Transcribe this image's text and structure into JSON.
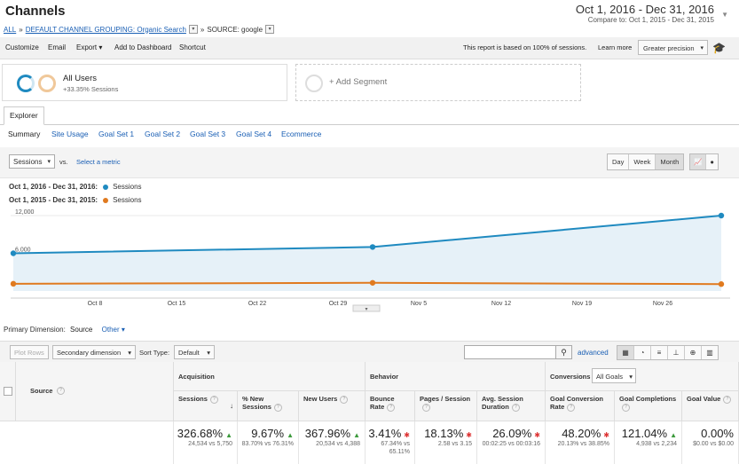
{
  "page": {
    "title": "Channels",
    "breadcrumb": {
      "all": "ALL",
      "sep": "»",
      "grouping": "DEFAULT CHANNEL GROUPING: Organic Search",
      "source": "SOURCE: google"
    },
    "date_range": {
      "main": "Oct 1, 2016 - Dec 31, 2016",
      "compare": "Compare to: Oct 1, 2015 - Dec 31, 2015"
    }
  },
  "toolbar": {
    "customize": "Customize",
    "email": "Email",
    "export": "Export ▾",
    "dashboard": "Add to Dashboard",
    "shortcut": "Shortcut",
    "sampling_note": "This report is based on 100% of sessions.",
    "learn_more": "Learn more",
    "precision": "Greater precision"
  },
  "segments": {
    "all_users": "All Users",
    "all_users_delta": "+33.35% Sessions",
    "add_segment": "+ Add Segment"
  },
  "tabs": {
    "explorer": "Explorer",
    "subtabs": [
      "Summary",
      "Site Usage",
      "Goal Set 1",
      "Goal Set 2",
      "Goal Set 3",
      "Goal Set 4",
      "Ecommerce"
    ]
  },
  "chart_controls": {
    "metric": "Sessions",
    "vs": "vs.",
    "select_metric": "Select a metric",
    "day": "Day",
    "week": "Week",
    "month": "Month"
  },
  "legend": {
    "current_range": "Oct 1, 2016 - Dec 31, 2016:",
    "previous_range": "Oct 1, 2015 - Dec 31, 2015:",
    "series_name": "Sessions"
  },
  "colors": {
    "current": "#1f8ac0",
    "previous": "#e07a1f",
    "accent": "#1a5fb4"
  },
  "chart_data": {
    "type": "line",
    "x_ticks": [
      "Oct 8",
      "Oct 15",
      "Oct 22",
      "Oct 29",
      "Nov 5",
      "Nov 12",
      "Nov 19",
      "Nov 26"
    ],
    "y_ticks": [
      "12,000",
      "6,000"
    ],
    "ylim": [
      0,
      12000
    ],
    "series": [
      {
        "name": "Sessions",
        "values": [
          6000,
          7000,
          12000
        ]
      },
      {
        "name": "Sessions",
        "values": [
          1150,
          1300,
          1100
        ]
      }
    ]
  },
  "table_toolbar": {
    "primary_dimension_label": "Primary Dimension:",
    "primary_dimension_value": "Source",
    "other": "Other ▾",
    "plot_rows": "Plot Rows",
    "secondary_dimension": "Secondary dimension",
    "sort_type_label": "Sort Type:",
    "sort_type_value": "Default",
    "advanced": "advanced"
  },
  "table": {
    "source_header": "Source",
    "group_acquisition": "Acquisition",
    "group_behavior": "Behavior",
    "group_conversions": "Conversions",
    "goals_select": "All Goals",
    "columns": [
      {
        "label": "Sessions",
        "value": "326.68%",
        "trend": "up",
        "detail": "24,534 vs 5,750"
      },
      {
        "label": "% New Sessions",
        "value": "9.67%",
        "trend": "up",
        "detail": "83.70% vs 76.31%"
      },
      {
        "label": "New Users",
        "value": "367.96%",
        "trend": "up",
        "detail": "20,534 vs 4,388"
      },
      {
        "label": "Bounce Rate",
        "value": "3.41%",
        "trend": "down",
        "detail": "67.34% vs 65.11%"
      },
      {
        "label": "Pages / Session",
        "value": "18.13%",
        "trend": "down",
        "detail": "2.58 vs 3.15"
      },
      {
        "label": "Avg. Session Duration",
        "value": "26.09%",
        "trend": "down",
        "detail": "00:02:25 vs 00:03:16"
      },
      {
        "label": "Goal Conversion Rate",
        "value": "48.20%",
        "trend": "down",
        "detail": "20.13% vs 38.85%"
      },
      {
        "label": "Goal Completions",
        "value": "121.04%",
        "trend": "up",
        "detail": "4,938 vs 2,234"
      },
      {
        "label": "Goal Value",
        "value": "0.00%",
        "trend": "",
        "detail": "$0.00 vs $0.00"
      }
    ]
  }
}
